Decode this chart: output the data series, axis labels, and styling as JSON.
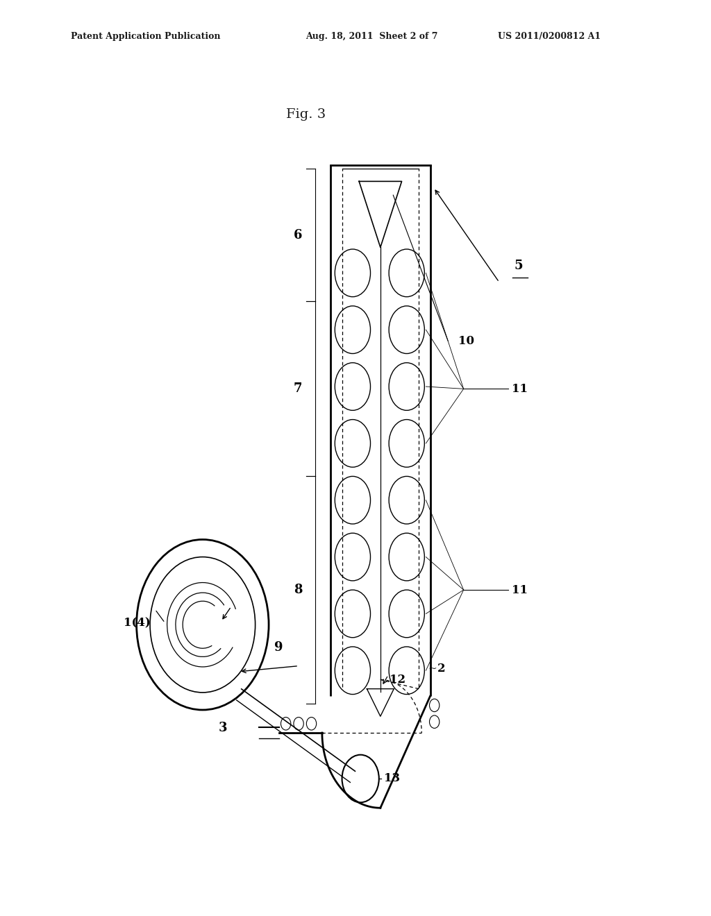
{
  "background_color": "#ffffff",
  "fig_label": "Fig. 3",
  "header_left": "Patent Application Publication",
  "header_mid": "Aug. 18, 2011  Sheet 2 of 7",
  "header_right": "US 2011/0200812 A1"
}
